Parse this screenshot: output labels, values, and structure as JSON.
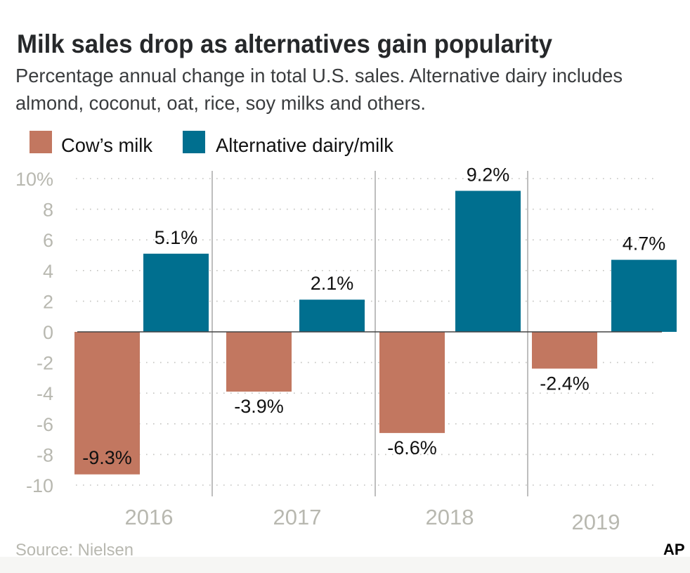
{
  "chart_data": {
    "type": "bar",
    "title": "Milk sales drop as alternatives gain popularity",
    "subtitle_lines": [
      "Percentage annual change in total U.S. sales. Alternative dairy includes",
      "almond, coconut, oat, rice, soy milks and others."
    ],
    "categories": [
      "2016",
      "2017",
      "2018",
      "2019"
    ],
    "series": [
      {
        "name": "Cow’s milk",
        "color": "#c27760",
        "values": [
          -9.3,
          -3.9,
          -6.6,
          -2.4
        ],
        "labels": [
          "-9.3%",
          "-3.9%",
          "-6.6%",
          "-2.4%"
        ]
      },
      {
        "name": "Alternative dairy/milk",
        "color": "#006f8f",
        "values": [
          5.1,
          2.1,
          9.2,
          4.7
        ],
        "labels": [
          "5.1%",
          "2.1%",
          "9.2%",
          "4.7%"
        ]
      }
    ],
    "yticks": [
      10,
      8,
      6,
      4,
      2,
      0,
      -2,
      -4,
      -6,
      -8,
      -10
    ],
    "ytick_labels": [
      "10%",
      "8",
      "6",
      "4",
      "2",
      "0",
      "-2",
      "-4",
      "-6",
      "-8",
      "-10"
    ],
    "ylim": [
      -10,
      10
    ],
    "grid": "dotted horizontal",
    "legend_placement": "top-left",
    "source": "Source: Nielsen",
    "credit": "AP"
  }
}
